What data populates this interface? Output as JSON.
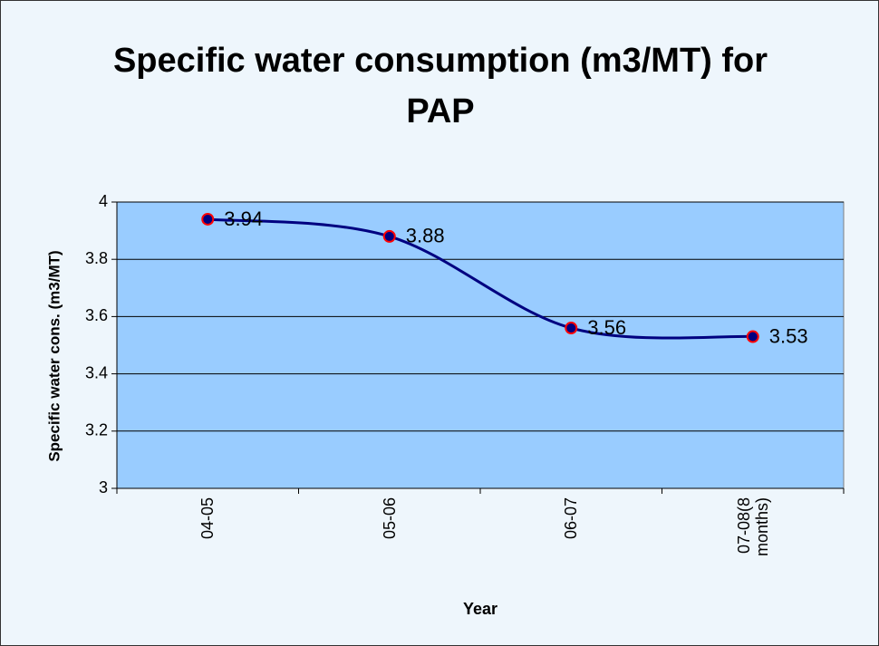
{
  "chart_data": {
    "type": "line",
    "title": "Specific water consumption (m3/MT) for PAP",
    "x_label": "Year",
    "y_label": "Specific water cons. (m3/MT)",
    "categories": [
      "04-05",
      "05-06",
      "06-07",
      "07-08(8 months)"
    ],
    "series": [
      {
        "name": "Specific water consumption",
        "color": "#000080",
        "marker_edge": "#ff0000",
        "values": [
          3.94,
          3.88,
          3.56,
          3.53
        ]
      }
    ],
    "ylim": [
      3,
      4
    ],
    "yticks": [
      3,
      3.2,
      3.4,
      3.6,
      3.8,
      4
    ],
    "grid": true,
    "smooth": true,
    "plot_color": "#99ccff"
  }
}
